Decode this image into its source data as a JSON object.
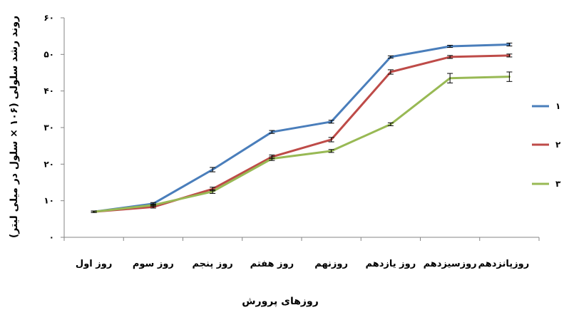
{
  "chart_data": {
    "type": "line",
    "title": "",
    "xlabel": "روزهای پرورش",
    "ylabel": "روند رشد سلولی (۱۰۶ × سلول در میلی لیتر)",
    "ylim": [
      0,
      60
    ],
    "yticks": [
      {
        "value": 0,
        "label": "۰"
      },
      {
        "value": 10,
        "label": "۱۰"
      },
      {
        "value": 20,
        "label": "۲۰"
      },
      {
        "value": 30,
        "label": "۳۰"
      },
      {
        "value": 40,
        "label": "۴۰"
      },
      {
        "value": 50,
        "label": "۵۰"
      },
      {
        "value": 60,
        "label": "۶۰"
      }
    ],
    "categories": [
      "روز اول",
      "روز سوم",
      "روز پنجم",
      "روز هفتم",
      "روزنهم",
      "روز یازدهم",
      "روزسیزدهم",
      "روزپانزدهم"
    ],
    "grid": false,
    "legend_position": "right",
    "series": [
      {
        "name": "۱",
        "color": "#4a7ebb",
        "values": [
          7.0,
          9.2,
          18.5,
          28.8,
          31.6,
          49.3,
          52.2,
          52.7
        ],
        "errors": [
          0.2,
          0.3,
          0.6,
          0.4,
          0.4,
          0.3,
          0.3,
          0.4
        ]
      },
      {
        "name": "۲",
        "color": "#be4b48",
        "values": [
          7.0,
          8.3,
          13.2,
          22.0,
          26.7,
          45.2,
          49.3,
          49.7
        ],
        "errors": [
          0.2,
          0.3,
          0.5,
          0.5,
          0.6,
          0.6,
          0.4,
          0.4
        ]
      },
      {
        "name": "۳",
        "color": "#98b954",
        "values": [
          7.0,
          8.8,
          12.5,
          21.5,
          23.6,
          30.9,
          43.5,
          43.9
        ],
        "errors": [
          0.2,
          0.3,
          0.5,
          0.5,
          0.4,
          0.4,
          1.3,
          1.3
        ]
      }
    ]
  }
}
